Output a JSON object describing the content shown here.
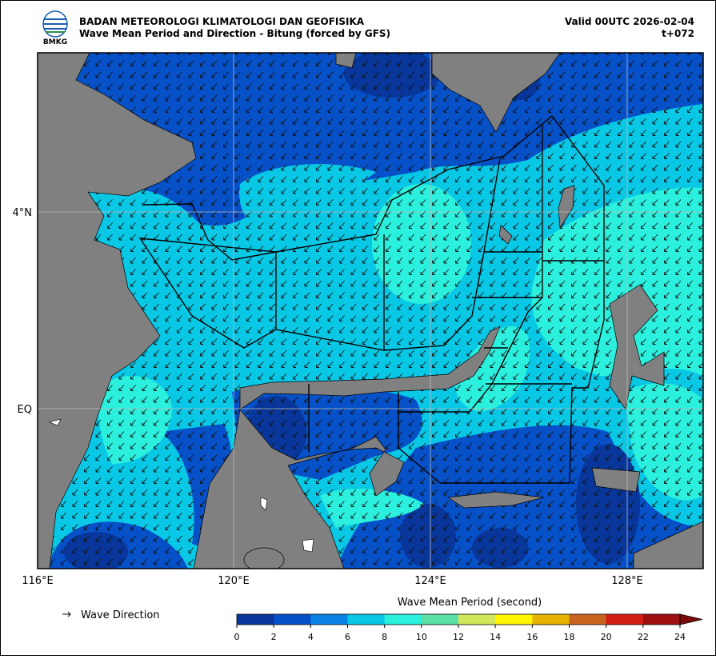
{
  "header": {
    "agency": "BADAN METEOROLOGI KLIMATOLOGI DAN GEOFISIKA",
    "title": "Wave Mean Period and Direction - Bitung (forced by GFS)",
    "valid": "Valid 00UTC 2026-02-04",
    "lead": "t+072",
    "logo_text": "BMKG"
  },
  "map": {
    "x_labels": [
      "116°E",
      "120°E",
      "124°E",
      "128°E"
    ],
    "y_labels": [
      "4°N",
      "EQ"
    ]
  },
  "legend": {
    "direction_label": "Wave Direction"
  },
  "colorbar": {
    "title": "Wave Mean Period (second)",
    "ticks": [
      0,
      2,
      4,
      6,
      8,
      10,
      12,
      14,
      16,
      18,
      20,
      22,
      24
    ],
    "colors": [
      "#08369a",
      "#0650c8",
      "#0a82e6",
      "#08c8e6",
      "#2cf0de",
      "#5ae0a6",
      "#d2e65a",
      "#fff500",
      "#e6b400",
      "#c86420",
      "#d21e14",
      "#a00f0f"
    ],
    "extend_color": "#7a0a0a"
  }
}
